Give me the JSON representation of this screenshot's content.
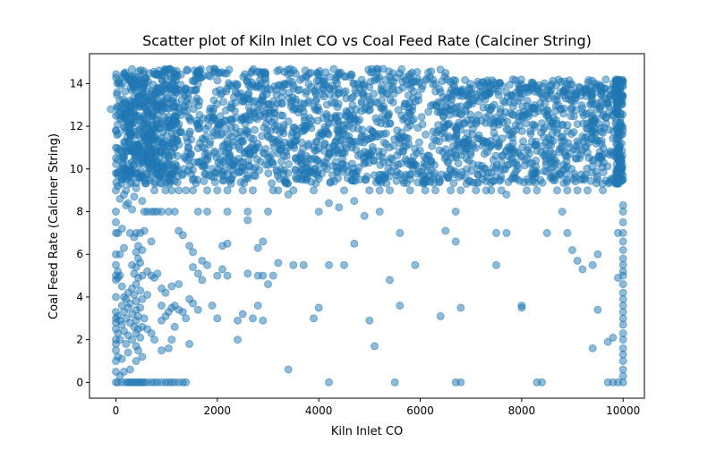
{
  "chart_data": {
    "type": "scatter",
    "title": "Scatter plot of Kiln Inlet CO vs Coal Feed Rate (Calciner String)",
    "xlabel": "Kiln Inlet CO",
    "ylabel": "Coal Feed Rate (Calciner String)",
    "xlim": [
      -520,
      10420
    ],
    "ylim": [
      -0.74,
      15.4
    ],
    "xticks": [
      0,
      2000,
      4000,
      6000,
      8000,
      10000
    ],
    "xtick_labels": [
      "0",
      "2000",
      "4000",
      "6000",
      "8000",
      "10000"
    ],
    "yticks": [
      0,
      2,
      4,
      6,
      8,
      10,
      12,
      14
    ],
    "ytick_labels": [
      "0",
      "2",
      "4",
      "6",
      "8",
      "10",
      "12",
      "14"
    ],
    "grid": false,
    "legend": "none",
    "marker_color": "#1f77b4",
    "marker_alpha": 0.5,
    "dense_band": {
      "x_range": [
        0,
        10000
      ],
      "y_range": [
        9.3,
        14.7
      ],
      "description_values": {
        "approx_density": "very high"
      }
    },
    "points": [
      [
        -100,
        12.8
      ],
      [
        0,
        12.5
      ],
      [
        0,
        11.8
      ],
      [
        0,
        11.0
      ],
      [
        0,
        10.5
      ],
      [
        0,
        9.8
      ],
      [
        0,
        9.0
      ],
      [
        0,
        8.0
      ],
      [
        0,
        7.5
      ],
      [
        0,
        7.0
      ],
      [
        0,
        6.0
      ],
      [
        0,
        5.5
      ],
      [
        0,
        5.0
      ],
      [
        0,
        4.8
      ],
      [
        0,
        4.0
      ],
      [
        0,
        3.3
      ],
      [
        0,
        3.0
      ],
      [
        0,
        2.8
      ],
      [
        0,
        2.5
      ],
      [
        0,
        2.0
      ],
      [
        0,
        1.8
      ],
      [
        0,
        1.5
      ],
      [
        0,
        1.0
      ],
      [
        0,
        0.5
      ],
      [
        0,
        0.0
      ],
      [
        40,
        9.2
      ],
      [
        40,
        7.0
      ],
      [
        40,
        5.2
      ],
      [
        40,
        4.9
      ],
      [
        40,
        3.1
      ],
      [
        40,
        2.3
      ],
      [
        40,
        1.2
      ],
      [
        40,
        0.0
      ],
      [
        80,
        8.6
      ],
      [
        80,
        6.0
      ],
      [
        80,
        5.0
      ],
      [
        80,
        2.9
      ],
      [
        80,
        2.0
      ],
      [
        80,
        0.3
      ],
      [
        120,
        9.5
      ],
      [
        120,
        7.2
      ],
      [
        120,
        4.5
      ],
      [
        120,
        3.6
      ],
      [
        120,
        2.7
      ],
      [
        120,
        1.1
      ],
      [
        120,
        0.0
      ],
      [
        160,
        8.8
      ],
      [
        160,
        6.3
      ],
      [
        160,
        4.0
      ],
      [
        160,
        3.3
      ],
      [
        160,
        2.4
      ],
      [
        160,
        0.5
      ],
      [
        200,
        9.0
      ],
      [
        200,
        8.3
      ],
      [
        200,
        3.9
      ],
      [
        200,
        3.0
      ],
      [
        200,
        1.8
      ],
      [
        200,
        0.0
      ],
      [
        240,
        8.4
      ],
      [
        240,
        4.2
      ],
      [
        240,
        3.5
      ],
      [
        240,
        2.2
      ],
      [
        240,
        1.4
      ],
      [
        240,
        0.0
      ],
      [
        280,
        9.3
      ],
      [
        280,
        7.0
      ],
      [
        280,
        3.7
      ],
      [
        280,
        2.8
      ],
      [
        280,
        0.6
      ],
      [
        280,
        0.0
      ],
      [
        320,
        8.1
      ],
      [
        320,
        5.5
      ],
      [
        320,
        4.4
      ],
      [
        320,
        3.2
      ],
      [
        320,
        2.0
      ],
      [
        320,
        0.0
      ],
      [
        360,
        8.7
      ],
      [
        360,
        6.8
      ],
      [
        360,
        5.1
      ],
      [
        360,
        4.1
      ],
      [
        360,
        2.6
      ],
      [
        360,
        0.0
      ],
      [
        400,
        9.1
      ],
      [
        400,
        7.0
      ],
      [
        400,
        6.1
      ],
      [
        400,
        5.4
      ],
      [
        400,
        4.6
      ],
      [
        400,
        3.8
      ],
      [
        400,
        3.4
      ],
      [
        400,
        2.9
      ],
      [
        400,
        2.3
      ],
      [
        400,
        1.7
      ],
      [
        400,
        1.0
      ],
      [
        400,
        0.0
      ],
      [
        440,
        6.4
      ],
      [
        440,
        5.8
      ],
      [
        440,
        4.9
      ],
      [
        440,
        3.1
      ],
      [
        440,
        2.5
      ],
      [
        440,
        1.5
      ],
      [
        440,
        0.0
      ],
      [
        480,
        7.0
      ],
      [
        480,
        5.6
      ],
      [
        480,
        4.3
      ],
      [
        480,
        3.5
      ],
      [
        480,
        2.1
      ],
      [
        480,
        0.0
      ],
      [
        520,
        8.5
      ],
      [
        520,
        6.2
      ],
      [
        520,
        5.0
      ],
      [
        520,
        3.9
      ],
      [
        520,
        2.6
      ],
      [
        520,
        1.2
      ],
      [
        520,
        0.0
      ],
      [
        560,
        8.0
      ],
      [
        560,
        7.1
      ],
      [
        560,
        3.0
      ],
      [
        560,
        0.0
      ],
      [
        620,
        8.0
      ],
      [
        620,
        5.2
      ],
      [
        620,
        4.1
      ],
      [
        620,
        2.5
      ],
      [
        620,
        0.0
      ],
      [
        700,
        8.0
      ],
      [
        700,
        6.6
      ],
      [
        700,
        5.0
      ],
      [
        700,
        2.3
      ],
      [
        700,
        0.0
      ],
      [
        760,
        9.0
      ],
      [
        760,
        8.0
      ],
      [
        760,
        4.9
      ],
      [
        760,
        2.0
      ],
      [
        760,
        0.0
      ],
      [
        820,
        8.0
      ],
      [
        820,
        5.1
      ],
      [
        820,
        0.0
      ],
      [
        900,
        8.0
      ],
      [
        900,
        4.4
      ],
      [
        900,
        3.6
      ],
      [
        900,
        2.9
      ],
      [
        900,
        1.5
      ],
      [
        900,
        0.0
      ],
      [
        980,
        9.0
      ],
      [
        980,
        4.2
      ],
      [
        980,
        3.1
      ],
      [
        980,
        0.0
      ],
      [
        1040,
        8.0
      ],
      [
        1040,
        3.3
      ],
      [
        1040,
        1.6
      ],
      [
        1040,
        0.0
      ],
      [
        1100,
        9.0
      ],
      [
        1100,
        4.5
      ],
      [
        1100,
        3.5
      ],
      [
        1100,
        2.0
      ],
      [
        1100,
        0.0
      ],
      [
        1160,
        8.0
      ],
      [
        1160,
        3.6
      ],
      [
        1160,
        2.6
      ],
      [
        1160,
        0.0
      ],
      [
        1240,
        9.0
      ],
      [
        1240,
        7.1
      ],
      [
        1240,
        4.6
      ],
      [
        1240,
        3.4
      ],
      [
        1240,
        0.0
      ],
      [
        1320,
        6.9
      ],
      [
        1320,
        3.3
      ],
      [
        1320,
        0.0
      ],
      [
        1380,
        9.0
      ],
      [
        1380,
        3.0
      ],
      [
        1380,
        0.0
      ],
      [
        1450,
        6.4
      ],
      [
        1450,
        3.9
      ],
      [
        1450,
        1.8
      ],
      [
        1520,
        9.0
      ],
      [
        1520,
        6.1
      ],
      [
        1520,
        5.4
      ],
      [
        1520,
        3.7
      ],
      [
        1620,
        8.0
      ],
      [
        1620,
        5.1
      ],
      [
        1620,
        3.4
      ],
      [
        1700,
        5.7
      ],
      [
        1700,
        4.8
      ],
      [
        1800,
        9.0
      ],
      [
        1800,
        8.0
      ],
      [
        1800,
        5.5
      ],
      [
        1900,
        3.6
      ],
      [
        2000,
        9.0
      ],
      [
        2000,
        5.0
      ],
      [
        2000,
        3.0
      ],
      [
        2100,
        6.4
      ],
      [
        2100,
        5.3
      ],
      [
        2200,
        9.0
      ],
      [
        2200,
        8.0
      ],
      [
        2200,
        6.5
      ],
      [
        2200,
        5.0
      ],
      [
        2400,
        2.0
      ],
      [
        2400,
        2.9
      ],
      [
        2500,
        9.0
      ],
      [
        2500,
        3.2
      ],
      [
        2600,
        8.0
      ],
      [
        2600,
        7.6
      ],
      [
        2600,
        5.1
      ],
      [
        2700,
        9.0
      ],
      [
        2700,
        3.0
      ],
      [
        2800,
        6.3
      ],
      [
        2800,
        5.0
      ],
      [
        2800,
        3.6
      ],
      [
        2900,
        6.6
      ],
      [
        2900,
        5.0
      ],
      [
        2900,
        2.9
      ],
      [
        3000,
        8.0
      ],
      [
        3000,
        4.6
      ],
      [
        3100,
        9.0
      ],
      [
        3100,
        5.0
      ],
      [
        3200,
        9.0
      ],
      [
        3200,
        5.6
      ],
      [
        3400,
        8.8
      ],
      [
        3400,
        0.6
      ],
      [
        3500,
        5.5
      ],
      [
        3500,
        9.0
      ],
      [
        3700,
        5.5
      ],
      [
        3900,
        9.0
      ],
      [
        3900,
        3.0
      ],
      [
        4000,
        8.0
      ],
      [
        4000,
        3.5
      ],
      [
        4200,
        8.4
      ],
      [
        4200,
        5.5
      ],
      [
        4200,
        0.0
      ],
      [
        4400,
        8.2
      ],
      [
        4500,
        9.0
      ],
      [
        4500,
        5.5
      ],
      [
        4700,
        6.5
      ],
      [
        4700,
        8.5
      ],
      [
        4900,
        7.8
      ],
      [
        5000,
        9.0
      ],
      [
        5000,
        2.9
      ],
      [
        5100,
        1.7
      ],
      [
        5200,
        8.0
      ],
      [
        5200,
        9.0
      ],
      [
        5400,
        4.8
      ],
      [
        5400,
        9.0
      ],
      [
        5500,
        0.0
      ],
      [
        5600,
        3.6
      ],
      [
        5600,
        7.0
      ],
      [
        5800,
        9.0
      ],
      [
        5900,
        5.5
      ],
      [
        6100,
        9.0
      ],
      [
        6300,
        9.0
      ],
      [
        6400,
        3.1
      ],
      [
        6500,
        7.1
      ],
      [
        6600,
        9.0
      ],
      [
        6700,
        6.6
      ],
      [
        6700,
        8.0
      ],
      [
        6700,
        0.0
      ],
      [
        6800,
        0.0
      ],
      [
        6800,
        3.5
      ],
      [
        6800,
        9.0
      ],
      [
        7100,
        9.0
      ],
      [
        7300,
        9.0
      ],
      [
        7400,
        9.0
      ],
      [
        7500,
        5.5
      ],
      [
        7500,
        7.0
      ],
      [
        7600,
        9.0
      ],
      [
        7700,
        7.0
      ],
      [
        7700,
        8.8
      ],
      [
        8000,
        3.6
      ],
      [
        8000,
        3.5
      ],
      [
        8100,
        9.0
      ],
      [
        8300,
        0.0
      ],
      [
        8300,
        9.0
      ],
      [
        8400,
        0.0
      ],
      [
        8500,
        7.0
      ],
      [
        8700,
        9.0
      ],
      [
        8800,
        8.0
      ],
      [
        8900,
        7.0
      ],
      [
        8900,
        9.0
      ],
      [
        9000,
        6.2
      ],
      [
        9100,
        5.7
      ],
      [
        9100,
        9.0
      ],
      [
        9200,
        5.3
      ],
      [
        9300,
        9.0
      ],
      [
        9400,
        5.5
      ],
      [
        9400,
        1.6
      ],
      [
        9500,
        6.0
      ],
      [
        9500,
        3.4
      ],
      [
        9600,
        9.0
      ],
      [
        9700,
        1.9
      ],
      [
        9700,
        0.0
      ],
      [
        9800,
        0.0
      ],
      [
        9800,
        2.1
      ],
      [
        9900,
        7.0
      ],
      [
        9900,
        4.9
      ],
      [
        9900,
        0.0
      ],
      [
        10000,
        9.5
      ],
      [
        10000,
        8.3
      ],
      [
        10000,
        8.0
      ],
      [
        10000,
        7.5
      ],
      [
        10000,
        7.0
      ],
      [
        10000,
        6.6
      ],
      [
        10000,
        6.2
      ],
      [
        10000,
        5.8
      ],
      [
        10000,
        5.5
      ],
      [
        10000,
        5.2
      ],
      [
        10000,
        5.0
      ],
      [
        10000,
        4.6
      ],
      [
        10000,
        4.2
      ],
      [
        10000,
        3.9
      ],
      [
        10000,
        3.6
      ],
      [
        10000,
        3.3
      ],
      [
        10000,
        3.0
      ],
      [
        10000,
        2.7
      ],
      [
        10000,
        2.3
      ],
      [
        10000,
        2.0
      ],
      [
        10000,
        1.6
      ],
      [
        10000,
        1.3
      ],
      [
        10000,
        1.0
      ],
      [
        10000,
        0.6
      ],
      [
        10000,
        0.3
      ],
      [
        10000,
        0.0
      ]
    ]
  }
}
